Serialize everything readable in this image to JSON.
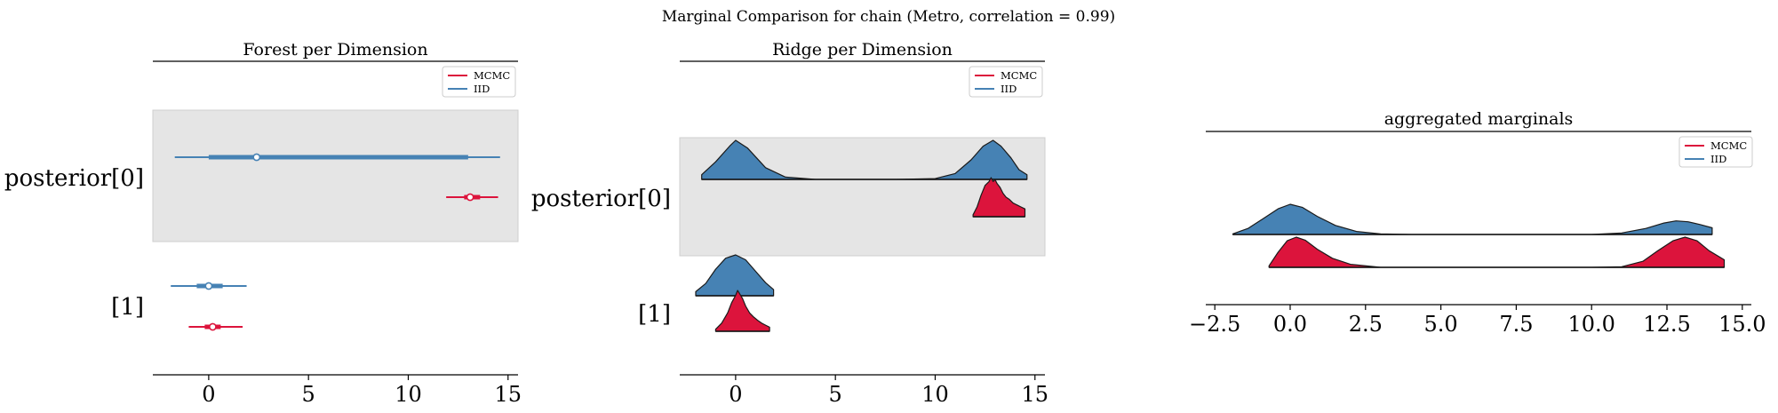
{
  "figure": {
    "suptitle": "Marginal Comparison for chain (Metro, correlation = 0.99)"
  },
  "colors": {
    "mcmc": "#dc143c",
    "iid": "#4682b4",
    "band": "#e5e5e5"
  },
  "legend": {
    "labels": [
      "MCMC",
      "IID"
    ],
    "placement": "top-right"
  },
  "chart_data": [
    {
      "type": "forest",
      "title": "Forest per Dimension",
      "xlim": [
        -2.8,
        15.5
      ],
      "xticks": [
        0,
        5,
        10,
        15
      ],
      "rows": [
        {
          "label": "posterior[0]",
          "shaded": true,
          "series": [
            {
              "name": "IID",
              "hdi_low": -1.7,
              "hdi_high": 14.6,
              "iqr_low": 0.0,
              "iqr_high": 13.0,
              "median": 2.4
            },
            {
              "name": "MCMC",
              "hdi_low": 11.9,
              "hdi_high": 14.5,
              "iqr_low": 12.8,
              "iqr_high": 13.6,
              "median": 13.1
            }
          ]
        },
        {
          "label": "[1]",
          "shaded": false,
          "series": [
            {
              "name": "IID",
              "hdi_low": -1.9,
              "hdi_high": 1.9,
              "iqr_low": -0.6,
              "iqr_high": 0.7,
              "median": 0.0
            },
            {
              "name": "MCMC",
              "hdi_low": -1.0,
              "hdi_high": 1.7,
              "iqr_low": -0.2,
              "iqr_high": 0.6,
              "median": 0.2
            }
          ]
        }
      ]
    },
    {
      "type": "ridge",
      "title": "Ridge per Dimension",
      "xlim": [
        -2.8,
        15.5
      ],
      "xticks": [
        0,
        5,
        10,
        15
      ],
      "rows": [
        {
          "label": "posterior[0]",
          "shaded": true,
          "series": [
            {
              "name": "IID",
              "x": [
                -1.7,
                -1.0,
                -0.3,
                0.0,
                0.6,
                1.5,
                2.5,
                4,
                6,
                8,
                10,
                11,
                11.8,
                12.4,
                12.9,
                13.3,
                13.8,
                14.2,
                14.6
              ],
              "y": [
                0.12,
                0.45,
                0.85,
                1.0,
                0.8,
                0.3,
                0.06,
                0.0,
                0.0,
                0.0,
                0.02,
                0.15,
                0.5,
                0.85,
                1.0,
                0.85,
                0.55,
                0.25,
                0.12
              ]
            },
            {
              "name": "MCMC",
              "x": [
                11.9,
                12.1,
                12.3,
                12.5,
                12.7,
                12.8,
                12.9,
                13.0,
                13.1,
                13.25,
                13.4,
                13.55,
                13.7,
                13.9,
                14.1,
                14.3,
                14.5
              ],
              "y": [
                0.05,
                0.25,
                0.55,
                0.8,
                0.9,
                1.0,
                0.9,
                0.95,
                0.85,
                0.75,
                0.6,
                0.5,
                0.45,
                0.35,
                0.3,
                0.25,
                0.2
              ]
            }
          ]
        },
        {
          "label": "[1]",
          "shaded": false,
          "series": [
            {
              "name": "IID",
              "x": [
                -2.0,
                -1.5,
                -1.0,
                -0.5,
                0.0,
                0.5,
                1.0,
                1.5,
                1.9
              ],
              "y": [
                0.1,
                0.3,
                0.65,
                0.92,
                1.0,
                0.88,
                0.6,
                0.32,
                0.15
              ]
            },
            {
              "name": "MCMC",
              "x": [
                -1.0,
                -0.7,
                -0.4,
                -0.2,
                0.0,
                0.1,
                0.2,
                0.35,
                0.5,
                0.7,
                0.9,
                1.1,
                1.3,
                1.5,
                1.7
              ],
              "y": [
                0.05,
                0.2,
                0.45,
                0.7,
                0.88,
                1.0,
                0.92,
                0.8,
                0.62,
                0.45,
                0.35,
                0.27,
                0.2,
                0.15,
                0.1
              ]
            }
          ]
        }
      ]
    },
    {
      "type": "ridge",
      "title": "aggregated marginals",
      "xlim": [
        -2.8,
        15.3
      ],
      "xticks": [
        -2.5,
        0.0,
        2.5,
        5.0,
        7.5,
        10.0,
        12.5,
        15.0
      ],
      "xtick_labels": [
        "−2.5",
        "0.0",
        "2.5",
        "5.0",
        "7.5",
        "10.0",
        "12.5",
        "15.0"
      ],
      "rows": [
        {
          "label": "",
          "shaded": false,
          "series": [
            {
              "name": "IID",
              "x": [
                -1.9,
                -1.4,
                -0.9,
                -0.4,
                0.0,
                0.4,
                0.9,
                1.5,
                2.2,
                3,
                4,
                6,
                8,
                10,
                11,
                11.8,
                12.4,
                12.8,
                13.2,
                13.6,
                14.0
              ],
              "y": [
                0.02,
                0.2,
                0.52,
                0.85,
                1.0,
                0.9,
                0.6,
                0.3,
                0.1,
                0.02,
                0.0,
                0.0,
                0.0,
                0.0,
                0.05,
                0.2,
                0.38,
                0.45,
                0.42,
                0.33,
                0.22
              ]
            },
            {
              "name": "MCMC",
              "x": [
                -0.7,
                -0.4,
                -0.1,
                0.2,
                0.5,
                0.9,
                1.4,
                2.0,
                3,
                4,
                6,
                8,
                10,
                11,
                11.7,
                12.2,
                12.7,
                13.1,
                13.5,
                13.9,
                14.4
              ],
              "y": [
                0.05,
                0.5,
                0.88,
                1.0,
                0.9,
                0.6,
                0.3,
                0.1,
                0.0,
                0.0,
                0.0,
                0.0,
                0.0,
                0.02,
                0.2,
                0.55,
                0.88,
                1.0,
                0.88,
                0.55,
                0.25
              ]
            }
          ]
        }
      ]
    }
  ]
}
